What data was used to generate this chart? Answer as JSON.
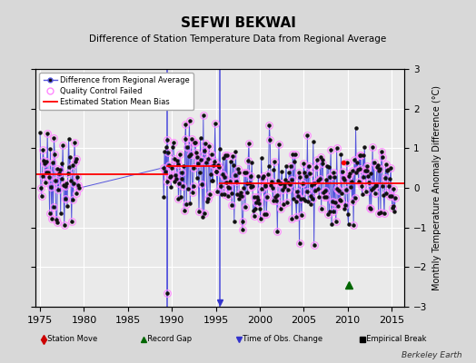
{
  "title": "SEFWI BEKWAI",
  "subtitle": "Difference of Station Temperature Data from Regional Average",
  "ylabel": "Monthly Temperature Anomaly Difference (°C)",
  "xlim": [
    1974.5,
    2016.5
  ],
  "ylim": [
    -3,
    3
  ],
  "yticks": [
    -3,
    -2,
    -1,
    0,
    1,
    2,
    3
  ],
  "xticks": [
    1975,
    1980,
    1985,
    1990,
    1995,
    2000,
    2005,
    2010,
    2015
  ],
  "bg_color": "#d8d8d8",
  "plot_bg_color": "#eaeaea",
  "grid_color": "white",
  "line_color": "#5555dd",
  "dot_color": "#111111",
  "qc_circle_color": "#ff88ff",
  "bias_line_color": "red",
  "station_move_color": "#cc0000",
  "record_gap_color": "#006600",
  "obs_change_color": "#3333cc",
  "empirical_break_color": "black",
  "vertical_line_x1": 1989.42,
  "vertical_line_x2": 1995.5,
  "record_gap_x": 2010.2,
  "obs_change_x": 1995.5,
  "outlier_x": 1989.42,
  "outlier_y": -2.65,
  "bias_segments": [
    {
      "x": [
        1974.5,
        1989.42
      ],
      "y": [
        0.35,
        0.35
      ]
    },
    {
      "x": [
        1989.42,
        1995.5
      ],
      "y": [
        0.55,
        0.55
      ]
    },
    {
      "x": [
        1995.5,
        2016.5
      ],
      "y": [
        0.12,
        0.12
      ]
    }
  ],
  "red_dot_x": 2009.5,
  "red_dot_y": 0.65,
  "seed": 7
}
